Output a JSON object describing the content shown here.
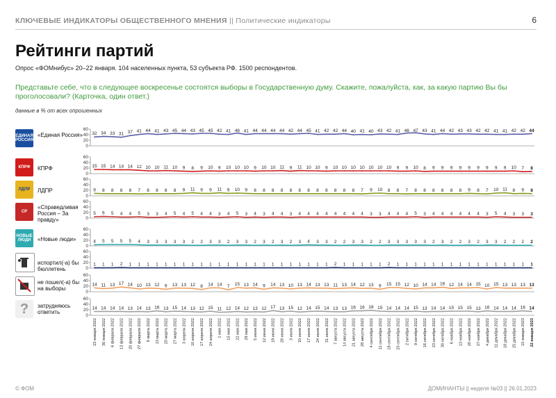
{
  "header": {
    "section": "КЛЮЧЕВЫЕ ИНДИКАТОРЫ ОБЩЕСТВЕННОГО МНЕНИЯ",
    "sep": "||",
    "subsection": "Политические индикаторы",
    "page": "6"
  },
  "title": "Рейтинги партий",
  "subtitle": "Опрос «ФОМнибус» 20–22 января. 104 населенных пункта, 53 субъекта РФ. 1500 респондентов.",
  "question": "Представьте себе, что в следующее воскресенье состоятся выборы в Государственную думу. Скажите, пожалуйста, как, за какую партию Вы бы проголосовали? (Карточка, один ответ.)",
  "note": "данные в % от всех опрошенных",
  "footer": {
    "left": "© ФОМ",
    "right": "ДОМИНАНТЫ  ||  неделя №03  ||  26.01.2023"
  },
  "logos": {
    "er": "ЕДИНАЯ РОССИЯ",
    "kprf": "КПРФ",
    "ldpr": "ЛДПР",
    "sr": "СР",
    "nl": "НОВЫЕ ЛЮДИ"
  },
  "chart_data": {
    "type": "line",
    "x": [
      "23 января 2022",
      "30 января 2022",
      "6 февраля 2022",
      "13 февраля 2022",
      "20 февраля 2022",
      "27 февраля 2022",
      "6 марта 2022",
      "13 марта 2022",
      "20 марта 2022",
      "27 марта 2022",
      "3 апреля 2022",
      "10 апреля 2022",
      "17 апреля 2022",
      "24 апреля 2022",
      "1 мая 2022",
      "15 мая 2022",
      "22 мая 2022",
      "29 мая 2022",
      "5 июня 2022",
      "12 июня 2022",
      "19 июня 2022",
      "26 июня 2022",
      "3 июля 2022",
      "10 июля 2022",
      "17 июля 2022",
      "24 июля 2022",
      "31 июля 2022",
      "7 августа 2022",
      "14 августа 2022",
      "21 августа 2022",
      "28 августа 2022",
      "4 сентября 2022",
      "11 сентября 2022",
      "18 сентября 2022",
      "25 сентября 2022",
      "2 октября 2022",
      "9 октября 2022",
      "16 октября 2022",
      "23 октября 2022",
      "30 октября 2022",
      "6 ноября 2022",
      "13 ноября 2022",
      "20 ноября 2022",
      "27 ноября 2022",
      "4 декабря 2022",
      "11 декабря 2022",
      "18 декабря 2022",
      "25 декабря 2022",
      "15 января 2023",
      "22 января 2023"
    ],
    "ylim": [
      0,
      60
    ],
    "yticks": [
      0,
      20,
      40,
      60
    ],
    "series": [
      {
        "name": "«Единая Россия»",
        "color": "#5b5fa8",
        "values": [
          32,
          34,
          33,
          31,
          37,
          41,
          44,
          41,
          43,
          45,
          44,
          43,
          45,
          45,
          42,
          41,
          46,
          41,
          44,
          44,
          44,
          44,
          42,
          44,
          45,
          41,
          42,
          42,
          44,
          40,
          41,
          40,
          43,
          42,
          41,
          46,
          47,
          43,
          41,
          44,
          42,
          43,
          43,
          42,
          42,
          41,
          41,
          42,
          42,
          44
        ]
      },
      {
        "name": "КПРФ",
        "color": "#d11c1c",
        "values": [
          15,
          15,
          14,
          14,
          14,
          12,
          10,
          10,
          11,
          10,
          9,
          8,
          9,
          10,
          9,
          10,
          10,
          10,
          9,
          10,
          10,
          11,
          9,
          11,
          10,
          10,
          9,
          10,
          10,
          10,
          10,
          10,
          10,
          10,
          9,
          9,
          10,
          8,
          9,
          9,
          9,
          9,
          9,
          9,
          9,
          9,
          9,
          10,
          7,
          8
        ]
      },
      {
        "name": "ЛДПР",
        "color": "#8a9a1c",
        "values": [
          9,
          8,
          8,
          8,
          8,
          7,
          8,
          8,
          8,
          8,
          9,
          11,
          9,
          9,
          11,
          9,
          10,
          9,
          8,
          8,
          8,
          8,
          8,
          8,
          8,
          8,
          8,
          8,
          8,
          8,
          7,
          9,
          10,
          8,
          8,
          7,
          8,
          8,
          8,
          8,
          8,
          8,
          9,
          8,
          7,
          10,
          11,
          8,
          9,
          8
        ]
      },
      {
        "name": "«Справедливая Россия – За правду»",
        "color": "#cc3333",
        "values": [
          5,
          6,
          5,
          4,
          4,
          5,
          3,
          3,
          4,
          5,
          4,
          5,
          4,
          4,
          3,
          4,
          5,
          3,
          4,
          3,
          4,
          4,
          3,
          4,
          4,
          4,
          4,
          4,
          4,
          4,
          4,
          3,
          3,
          4,
          4,
          4,
          5,
          3,
          4,
          4,
          4,
          4,
          4,
          4,
          3,
          5,
          4,
          3,
          3,
          3
        ]
      },
      {
        "name": "«Новые люди»",
        "color": "#2eaab0",
        "values": [
          4,
          5,
          5,
          5,
          5,
          4,
          3,
          3,
          3,
          3,
          3,
          2,
          2,
          3,
          3,
          2,
          3,
          3,
          2,
          3,
          2,
          3,
          2,
          3,
          4,
          3,
          3,
          2,
          2,
          3,
          3,
          2,
          2,
          3,
          3,
          3,
          3,
          3,
          2,
          3,
          2,
          2,
          3,
          2,
          3,
          3,
          2,
          2,
          2,
          2
        ]
      },
      {
        "name": "испортил(-а) бы бюллетень",
        "color": "#1b2b6b",
        "values": [
          1,
          1,
          1,
          2,
          1,
          1,
          1,
          1,
          1,
          1,
          1,
          1,
          1,
          1,
          1,
          1,
          1,
          1,
          1,
          1,
          1,
          1,
          1,
          1,
          1,
          1,
          1,
          2,
          1,
          1,
          1,
          1,
          1,
          2,
          1,
          1,
          1,
          1,
          1,
          1,
          1,
          1,
          1,
          1,
          1,
          1,
          1,
          1,
          1,
          1
        ]
      },
      {
        "name": "не пошел(-а) бы на выборы",
        "color": "#f0a060",
        "values": [
          14,
          11,
          13,
          17,
          14,
          10,
          13,
          12,
          9,
          13,
          13,
          12,
          8,
          14,
          14,
          7,
          15,
          13,
          14,
          9,
          14,
          13,
          10,
          13,
          14,
          13,
          13,
          11,
          13,
          14,
          12,
          13,
          9,
          15,
          15,
          12,
          10,
          14,
          14,
          16,
          12,
          14,
          14,
          15,
          10,
          15,
          13,
          13,
          13,
          13
        ]
      },
      {
        "name": "затрудняюсь ответить",
        "color": "#a0a0a0",
        "values": [
          14,
          14,
          14,
          14,
          13,
          14,
          13,
          16,
          13,
          15,
          14,
          13,
          12,
          15,
          11,
          12,
          14,
          12,
          13,
          12,
          17,
          13,
          15,
          12,
          14,
          15,
          14,
          13,
          13,
          16,
          16,
          18,
          15,
          14,
          14,
          14,
          15,
          13,
          14,
          14,
          15,
          15,
          15,
          13,
          16,
          14,
          14,
          14,
          16,
          14
        ]
      }
    ]
  }
}
